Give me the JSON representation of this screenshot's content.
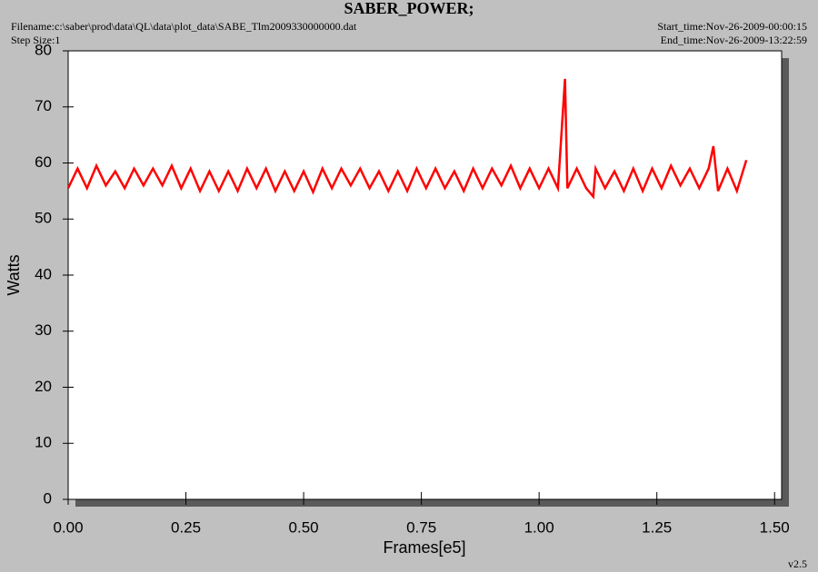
{
  "chart_data": {
    "type": "line",
    "title": "SABER_POWER;",
    "filename": "Filename:c:\\saber\\prod\\data\\QL\\data\\plot_data\\SABE_Tlm2009330000000.dat",
    "step_size": "Step Size:1",
    "start_time": "Start_time:Nov-26-2009-00:00:15",
    "end_time": "End_time:Nov-26-2009-13:22:59",
    "version": "v2.5",
    "x_label": "Frames[e5]",
    "y_label": "Watts",
    "xlim": [
      0,
      1.515
    ],
    "ylim": [
      0,
      80
    ],
    "xticks": [
      {
        "value": 0,
        "label": "0.00"
      },
      {
        "value": 0.25,
        "label": "0.25"
      },
      {
        "value": 0.5,
        "label": "0.50"
      },
      {
        "value": 0.75,
        "label": "0.75"
      },
      {
        "value": 1,
        "label": "1.00"
      },
      {
        "value": 1.25,
        "label": "1.25"
      },
      {
        "value": 1.5,
        "label": "1.50"
      }
    ],
    "yticks": [
      0,
      10,
      20,
      30,
      40,
      50,
      60,
      70,
      80
    ],
    "series": [
      {
        "color": "#ff0000",
        "x": [
          0,
          0.02,
          0.04,
          0.06,
          0.08,
          0.1,
          0.12,
          0.14,
          0.16,
          0.18,
          0.2,
          0.22,
          0.24,
          0.26,
          0.28,
          0.3,
          0.32,
          0.34,
          0.36,
          0.38,
          0.4,
          0.42,
          0.44,
          0.46,
          0.48,
          0.5,
          0.52,
          0.54,
          0.56,
          0.58,
          0.6,
          0.62,
          0.64,
          0.66,
          0.68,
          0.7,
          0.72,
          0.74,
          0.76,
          0.78,
          0.8,
          0.82,
          0.84,
          0.86,
          0.88,
          0.9,
          0.92,
          0.94,
          0.96,
          0.98,
          1,
          1.02,
          1.04,
          1.055,
          1.06,
          1.08,
          1.1,
          1.115,
          1.12,
          1.14,
          1.16,
          1.18,
          1.2,
          1.22,
          1.24,
          1.26,
          1.28,
          1.3,
          1.32,
          1.34,
          1.36,
          1.37,
          1.38,
          1.4,
          1.42,
          1.44
        ],
        "values": [
          55.5,
          59,
          55.5,
          59.5,
          56,
          58.5,
          55.5,
          59,
          56,
          59,
          56,
          59.5,
          55.5,
          59,
          55,
          58.5,
          55,
          58.5,
          55,
          59,
          55.5,
          59,
          55,
          58.5,
          55,
          58.5,
          54.8,
          59,
          55.5,
          59,
          56,
          59,
          55.5,
          58.5,
          55,
          58.5,
          55,
          59,
          55.5,
          59,
          55.5,
          58.5,
          55,
          59,
          55.5,
          59,
          56,
          59.5,
          55.5,
          59,
          55.5,
          59,
          55.5,
          75,
          55.5,
          59,
          55.5,
          54,
          59,
          55.5,
          58.5,
          55,
          59,
          55,
          59,
          55.5,
          59.5,
          56,
          59,
          55.5,
          59,
          63,
          55,
          59,
          55,
          60.5
        ]
      }
    ]
  }
}
